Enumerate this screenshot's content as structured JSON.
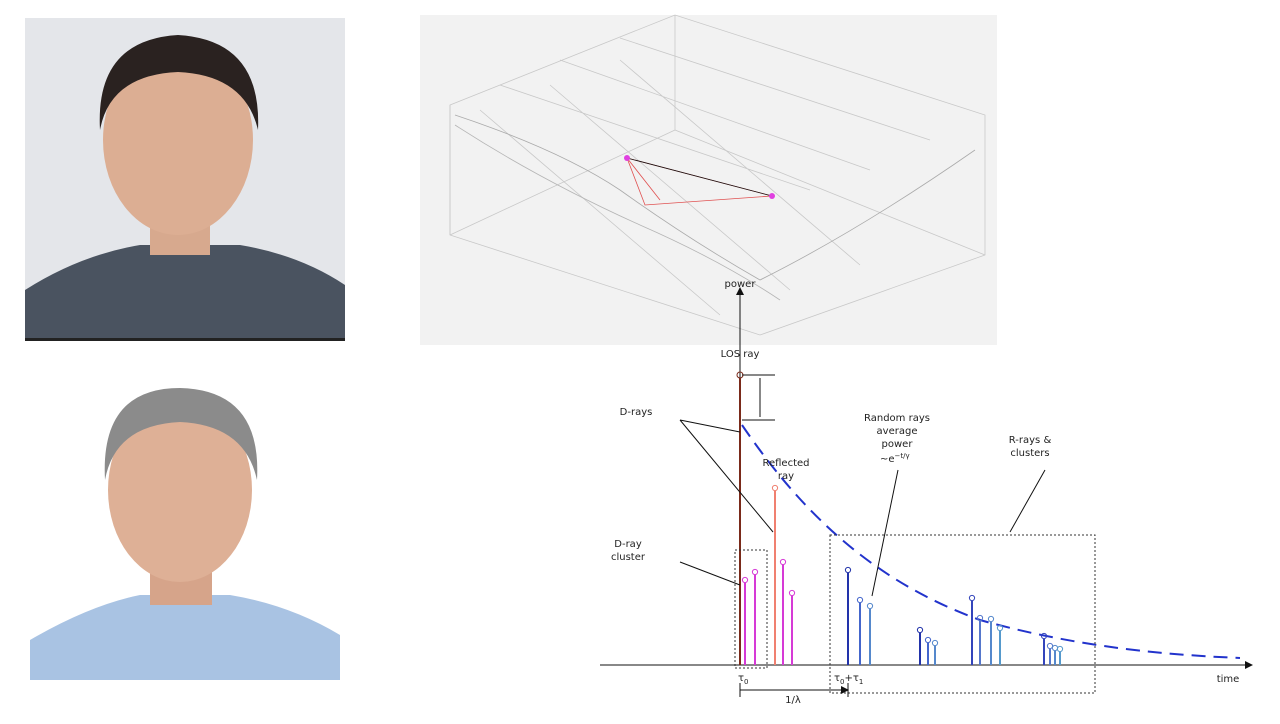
{
  "diagram": {
    "power_label": "power",
    "los_label": "LOS ray",
    "d_rays_label": "D-rays",
    "reflected_label": [
      "Reflected",
      "ray"
    ],
    "random_label": [
      "Random rays",
      "average",
      "power"
    ],
    "random_formula": {
      "base": "~e",
      "exponent": "−t/γ"
    },
    "r_rays_label": [
      "R-rays &",
      "clusters"
    ],
    "d_cluster_label": [
      "D-ray",
      "cluster"
    ],
    "tau0_label": {
      "base": "τ",
      "sub": "0"
    },
    "tau01_label": {
      "base": "τ",
      "sub1": "0",
      "plus": "+τ",
      "sub2": "1"
    },
    "lambda_label": "1/λ",
    "time_label": "time"
  }
}
